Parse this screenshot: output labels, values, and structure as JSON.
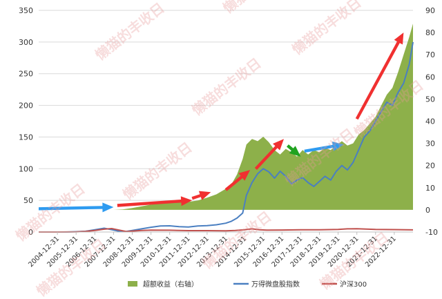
{
  "chart_data": {
    "type": "area",
    "title": "",
    "xlabel": "",
    "ylabel": "",
    "x_range": [
      "2004-12-31",
      "2023-12-31"
    ],
    "categories": [
      "2004-12-31",
      "2005-12-31",
      "2006-12-31",
      "2007-12-31",
      "2008-12-31",
      "2009-12-31",
      "2010-12-31",
      "2011-12-31",
      "2012-12-31",
      "2013-12-31",
      "2014-12-31",
      "2015-12-31",
      "2016-12-31",
      "2017-12-31",
      "2018-12-31",
      "2019-12-31",
      "2020-12-31",
      "2021-12-31",
      "2022-12-31"
    ],
    "left_axis": {
      "ylim": [
        0,
        350
      ],
      "ticks": [
        "0",
        "50",
        "100",
        "150",
        "200",
        "250",
        "300",
        "350"
      ]
    },
    "right_axis": {
      "ylim": [
        -10,
        90
      ],
      "ticks": [
        "-10",
        "0",
        "10",
        "20",
        "30",
        "40",
        "50",
        "60",
        "70",
        "80",
        "90"
      ]
    },
    "grid": true,
    "legend_position": "bottom",
    "series": [
      {
        "name": "超额收益（右轴）",
        "axis": "right",
        "color": "#8db04a",
        "kind": "area",
        "x": [
          2004.0,
          2004.5,
          2005.0,
          2005.5,
          2006.0,
          2006.5,
          2007.0,
          2007.5,
          2008.0,
          2008.5,
          2009.0,
          2009.5,
          2010.0,
          2010.5,
          2011.0,
          2011.5,
          2012.0,
          2012.5,
          2013.0,
          2013.5,
          2014.0,
          2014.3,
          2014.6,
          2014.9,
          2015.1,
          2015.4,
          2015.7,
          2016.0,
          2016.3,
          2016.6,
          2016.9,
          2017.2,
          2017.5,
          2017.8,
          2018.1,
          2018.4,
          2018.7,
          2019.0,
          2019.3,
          2019.6,
          2019.9,
          2020.2,
          2020.5,
          2020.8,
          2021.1,
          2021.4,
          2021.7,
          2022.0,
          2022.3,
          2022.6,
          2022.9,
          2023.2,
          2023.5,
          2023.8,
          2024.0
        ],
        "values": [
          0,
          0,
          0,
          0,
          0,
          0,
          0,
          0,
          0,
          0.2,
          0.8,
          1.6,
          2.4,
          3.0,
          3.2,
          3.3,
          3.6,
          4.2,
          5.5,
          7.0,
          9.5,
          11.5,
          16.0,
          23.0,
          29.5,
          32.0,
          31.0,
          33.0,
          30.5,
          27.0,
          25.0,
          27.5,
          26.0,
          24.0,
          27.0,
          25.0,
          27.0,
          26.0,
          28.0,
          27.0,
          29.0,
          31.0,
          29.0,
          30.0,
          34.0,
          36.0,
          39.0,
          42.0,
          47.0,
          52.0,
          55.0,
          62.0,
          70.0,
          78.0,
          84.0
        ]
      },
      {
        "name": "万得微盘股指数",
        "axis": "left",
        "color": "#4a7fc1",
        "kind": "line",
        "x": [
          2004.0,
          2004.5,
          2005.0,
          2005.5,
          2006.0,
          2006.5,
          2007.0,
          2007.5,
          2008.0,
          2008.3,
          2008.6,
          2009.0,
          2009.5,
          2010.0,
          2010.5,
          2011.0,
          2011.5,
          2012.0,
          2012.5,
          2013.0,
          2013.5,
          2014.0,
          2014.3,
          2014.6,
          2014.9,
          2015.1,
          2015.4,
          2015.7,
          2016.0,
          2016.3,
          2016.6,
          2016.9,
          2017.2,
          2017.5,
          2017.8,
          2018.1,
          2018.4,
          2018.7,
          2019.0,
          2019.3,
          2019.6,
          2019.9,
          2020.2,
          2020.5,
          2020.8,
          2021.1,
          2021.4,
          2021.7,
          2022.0,
          2022.3,
          2022.6,
          2022.9,
          2023.2,
          2023.5,
          2023.8,
          2024.0
        ],
        "values": [
          0,
          0,
          0,
          0,
          0.5,
          1.2,
          3.5,
          6.0,
          3.2,
          1.2,
          0.5,
          2.5,
          5.0,
          7.5,
          9.5,
          9.8,
          8.5,
          8.0,
          9.5,
          10.0,
          11.5,
          14.0,
          17.0,
          22.0,
          30.0,
          58.0,
          78.0,
          92.0,
          100.0,
          95.0,
          85.0,
          96.0,
          88.0,
          76.0,
          82.0,
          86.0,
          78.0,
          72.0,
          80.0,
          88.0,
          82.0,
          96.0,
          105.0,
          98.0,
          110.0,
          130.0,
          150.0,
          160.0,
          175.0,
          190.0,
          205.0,
          200.0,
          220.0,
          235.0,
          265.0,
          300.0
        ]
      },
      {
        "name": "沪深300",
        "axis": "left",
        "color": "#c0504d",
        "kind": "line",
        "x": [
          2004.0,
          2005.0,
          2006.0,
          2006.5,
          2007.0,
          2007.5,
          2007.9,
          2008.3,
          2008.7,
          2009.0,
          2009.5,
          2010.0,
          2011.0,
          2012.0,
          2013.0,
          2014.0,
          2014.5,
          2015.0,
          2015.4,
          2015.8,
          2016.2,
          2017.0,
          2018.0,
          2019.0,
          2020.0,
          2020.5,
          2021.0,
          2021.5,
          2022.0,
          2023.0,
          2024.0
        ],
        "values": [
          0,
          0,
          0.2,
          1.0,
          2.5,
          4.5,
          5.5,
          3.0,
          0.8,
          1.5,
          2.5,
          3.0,
          2.8,
          2.2,
          2.2,
          2.0,
          2.5,
          3.5,
          5.0,
          3.5,
          3.0,
          3.2,
          3.5,
          3.6,
          4.0,
          5.0,
          5.2,
          4.6,
          4.0,
          3.8,
          3.4
        ]
      }
    ],
    "annotations": [
      {
        "shape": "arrow",
        "color": "#2e9bf0",
        "from": [
          2004.0,
          0.5
        ],
        "to": [
          2008.0,
          1.2
        ]
      },
      {
        "shape": "arrow",
        "color": "#f03030",
        "from": [
          2008.2,
          2.0
        ],
        "to": [
          2012.2,
          4.3
        ]
      },
      {
        "shape": "arrow",
        "color": "#f03030",
        "from": [
          2012.2,
          5.2
        ],
        "to": [
          2013.2,
          8.0
        ]
      },
      {
        "shape": "arrow",
        "color": "#f03030",
        "from": [
          2014.0,
          9.0
        ],
        "to": [
          2015.3,
          18.0
        ]
      },
      {
        "shape": "arrow",
        "color": "#f03030",
        "from": [
          2015.6,
          18.5
        ],
        "to": [
          2017.1,
          32.0
        ]
      },
      {
        "shape": "arrow",
        "color": "#21a321",
        "from": [
          2017.3,
          29.0
        ],
        "to": [
          2018.0,
          24.0
        ]
      },
      {
        "shape": "arrow",
        "color": "#2e9bf0",
        "from": [
          2018.2,
          26.5
        ],
        "to": [
          2020.3,
          29.5
        ]
      },
      {
        "shape": "arrow",
        "color": "#f03030",
        "from": [
          2021.0,
          41.0
        ],
        "to": [
          2023.5,
          80.0
        ]
      }
    ]
  },
  "watermark": {
    "text": "懒猫的丰收日"
  }
}
